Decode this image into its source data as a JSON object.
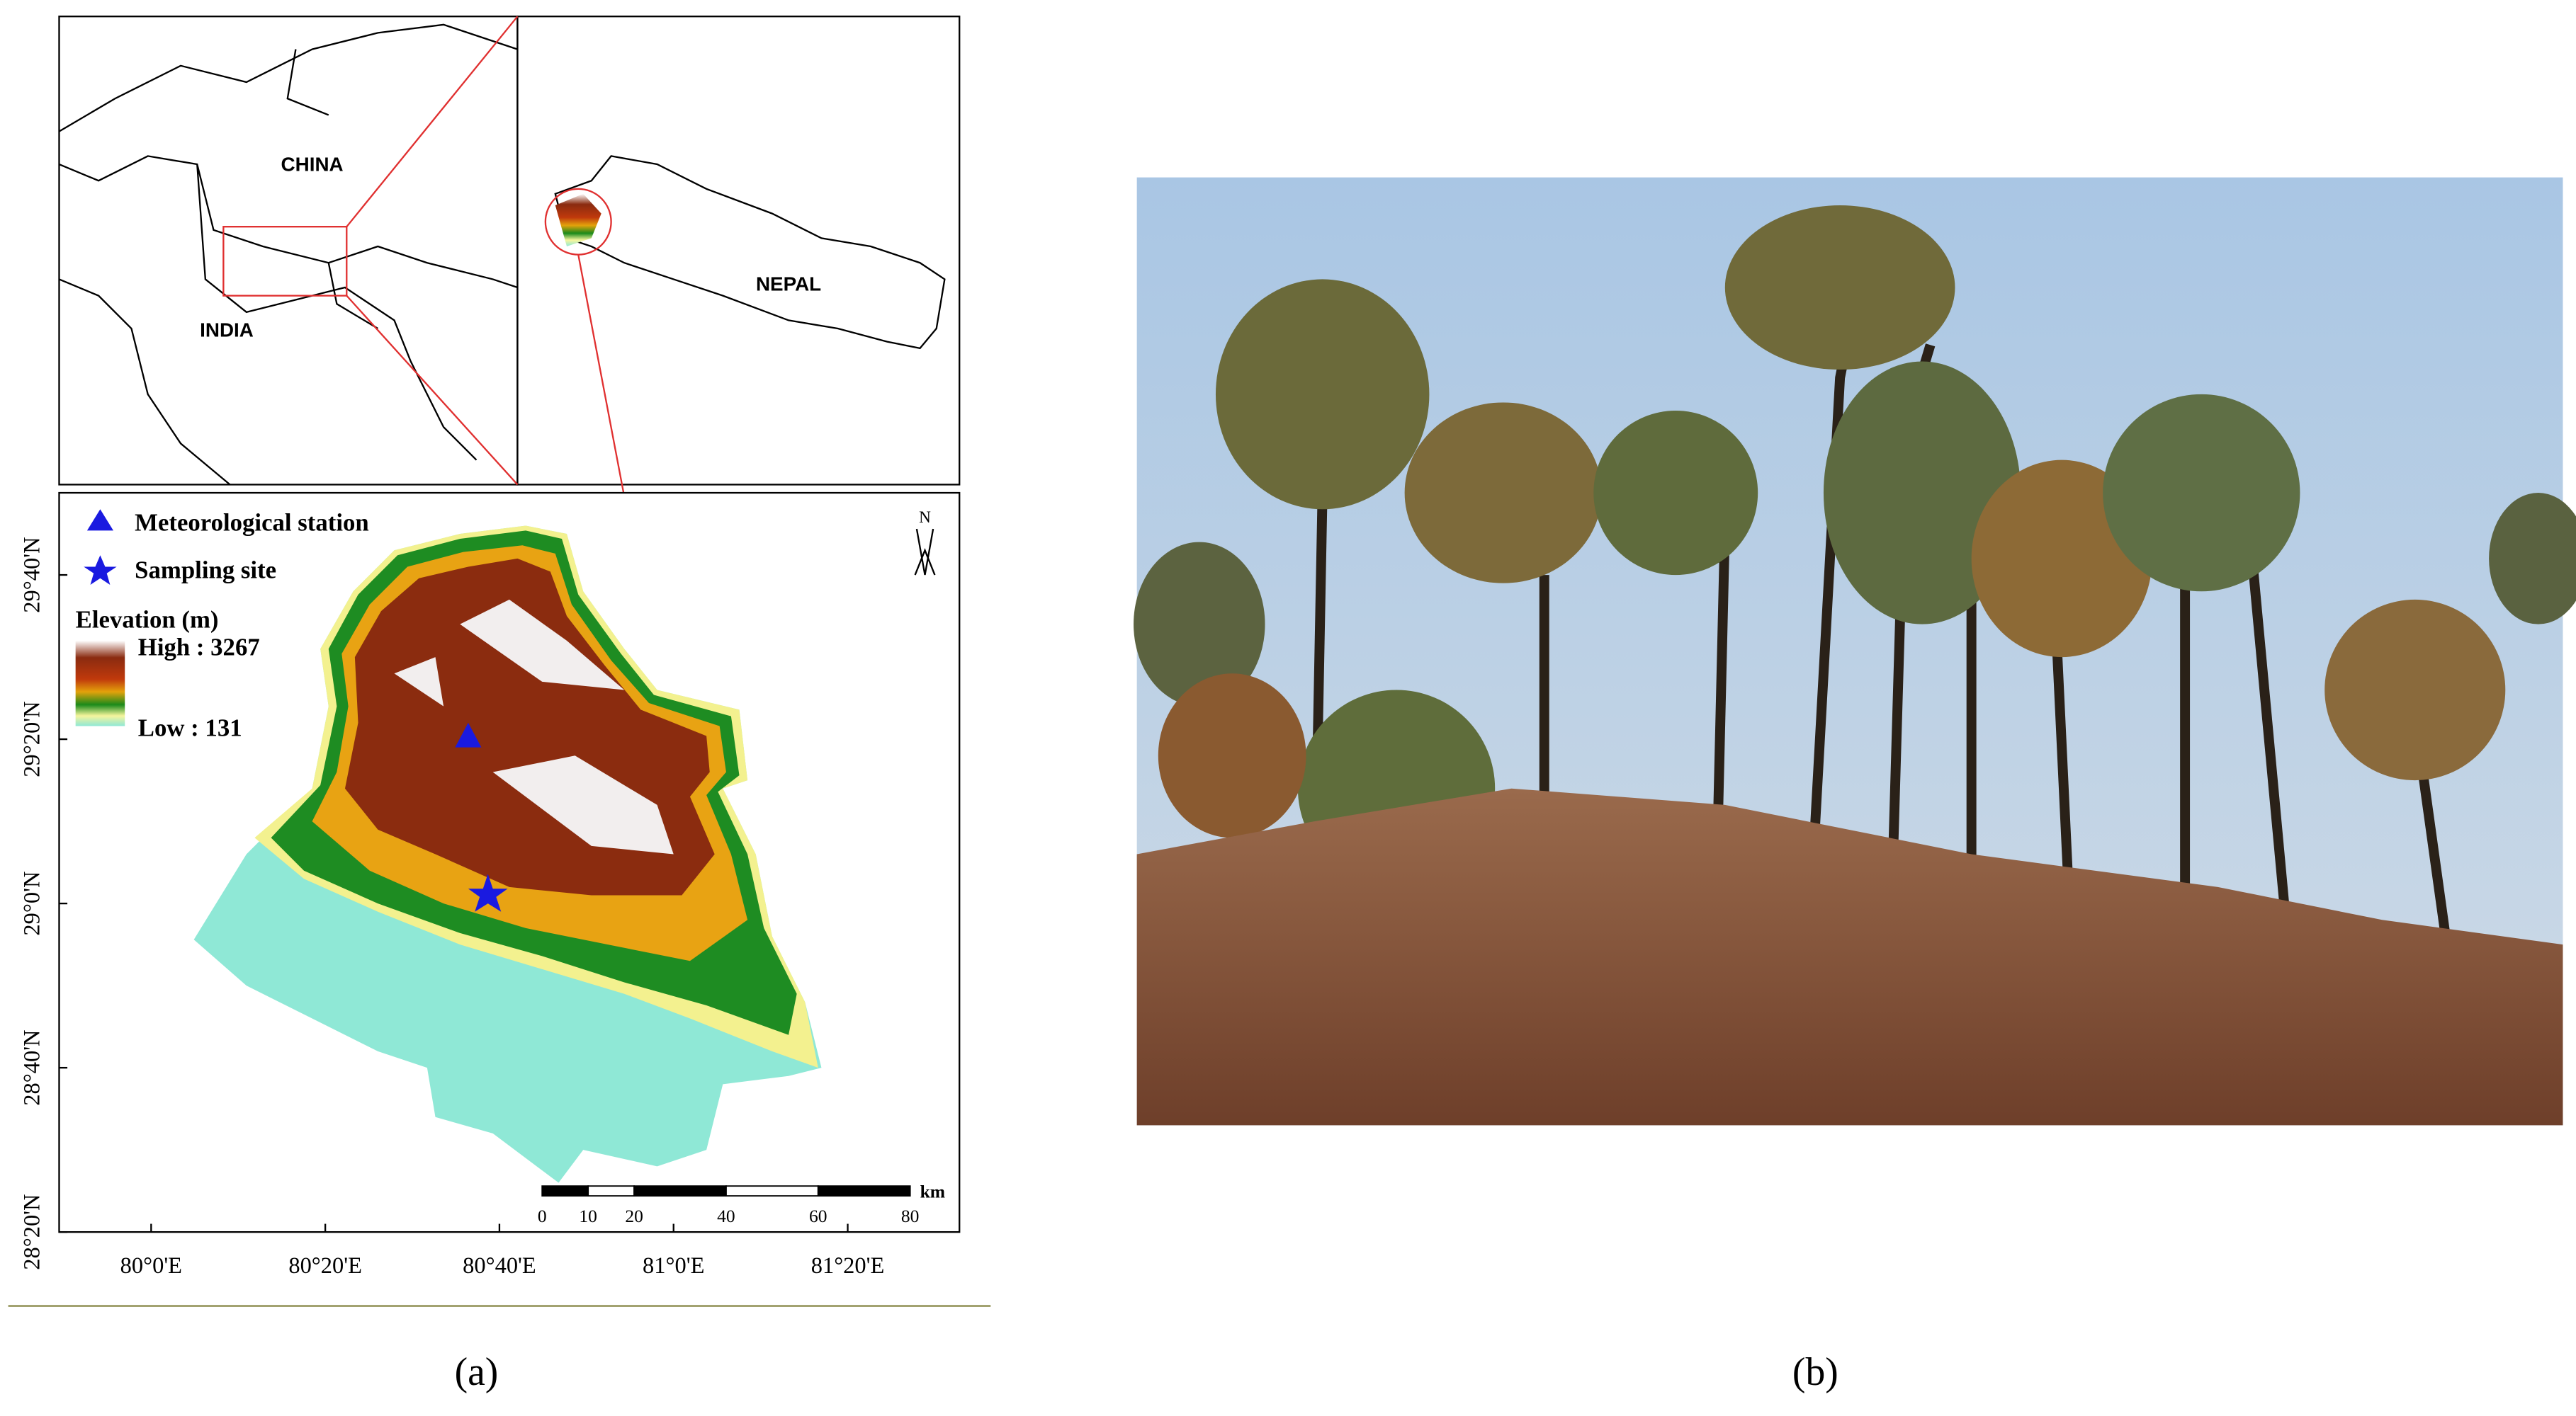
{
  "panel_a": {
    "inset_region": {
      "labels": [
        "CHINA",
        "INDIA"
      ]
    },
    "inset_country": {
      "label": "NEPAL"
    },
    "main_map": {
      "north": "N",
      "legend": {
        "station": "Meteorological station",
        "site": "Sampling site",
        "title": "Elevation (m)",
        "high": "High : 3267",
        "low": "Low : 131"
      },
      "lat_labels": [
        "29°40'N",
        "29°20'N",
        "29°0'N",
        "28°40'N",
        "28°20'N"
      ],
      "lon_labels": [
        "80°0'E",
        "80°20'E",
        "80°40'E",
        "81°0'E",
        "81°20'E"
      ],
      "scale_bar": {
        "labels": [
          0,
          10,
          20,
          40,
          60,
          80
        ],
        "unit": "km"
      }
    },
    "caption": "(a)"
  },
  "panel_b": {
    "caption": "(b)"
  }
}
